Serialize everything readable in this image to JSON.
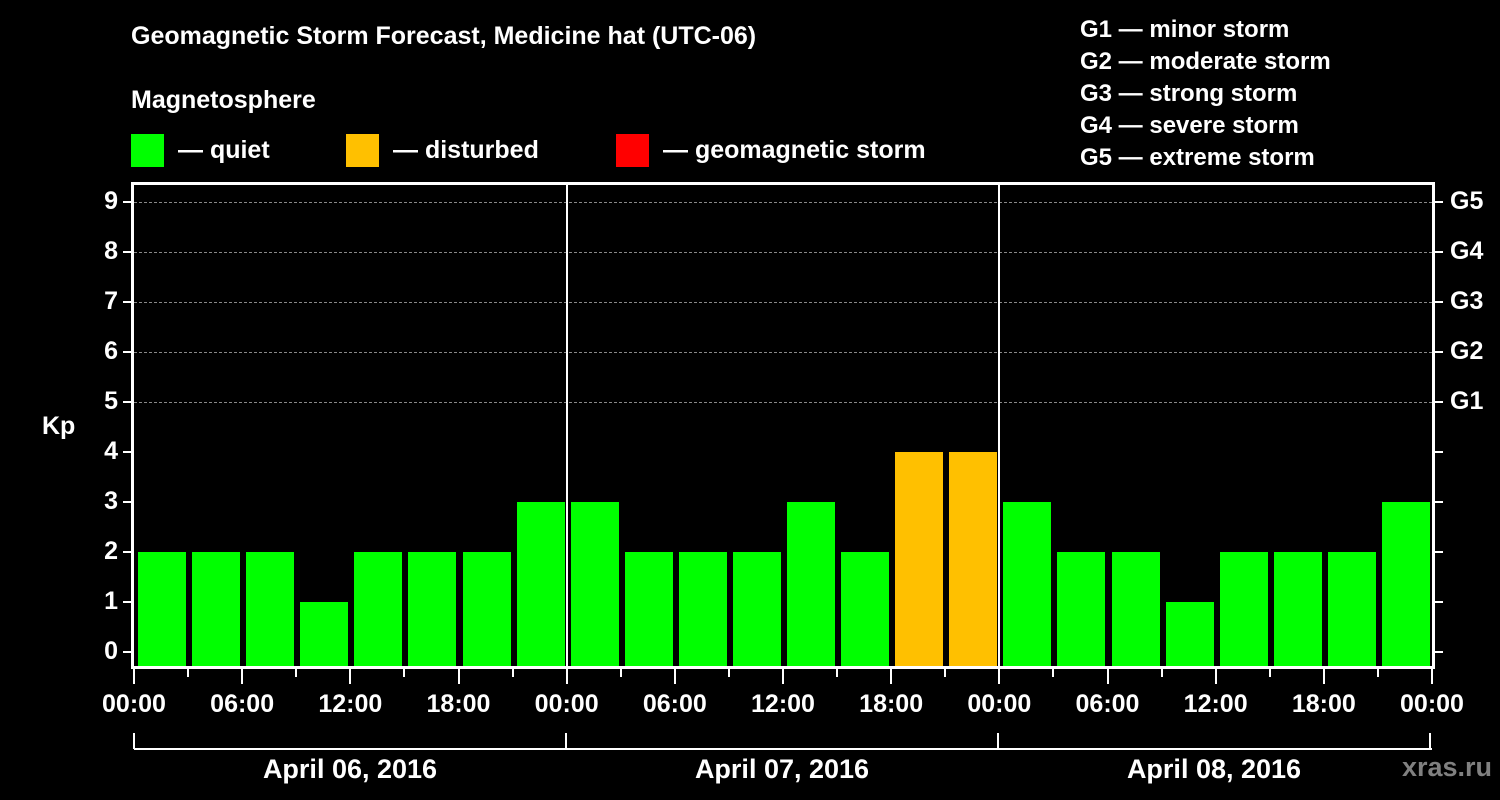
{
  "header": {
    "title": "Geomagnetic Storm Forecast, Medicine hat (UTC-06)",
    "subtitle": "Magnetosphere"
  },
  "legend": [
    {
      "label": "— quiet",
      "color": "#00ff00"
    },
    {
      "label": "— disturbed",
      "color": "#ffc000"
    },
    {
      "label": "— geomagnetic storm",
      "color": "#ff0000"
    }
  ],
  "g_scale": [
    "G1 — minor storm",
    "G2 — moderate storm",
    "G3 — strong storm",
    "G4 — severe storm",
    "G5 — extreme storm"
  ],
  "axes": {
    "ylabel": "Kp",
    "yticks": [
      "0",
      "1",
      "2",
      "3",
      "4",
      "5",
      "6",
      "7",
      "8",
      "9"
    ],
    "right_ticks": [
      {
        "kp": 5,
        "label": "G1"
      },
      {
        "kp": 6,
        "label": "G2"
      },
      {
        "kp": 7,
        "label": "G3"
      },
      {
        "kp": 8,
        "label": "G4"
      },
      {
        "kp": 9,
        "label": "G5"
      }
    ],
    "xticks": [
      "00:00",
      "06:00",
      "12:00",
      "18:00",
      "00:00",
      "06:00",
      "12:00",
      "18:00",
      "00:00",
      "06:00",
      "12:00",
      "18:00",
      "00:00"
    ],
    "dates": [
      "April 06, 2016",
      "April 07, 2016",
      "April 08, 2016"
    ]
  },
  "watermark": "xras.ru",
  "chart_data": {
    "type": "bar",
    "title": "Geomagnetic Storm Forecast, Medicine hat (UTC-06)",
    "subtitle": "Magnetosphere",
    "xlabel": "",
    "ylabel": "Kp",
    "ylim": [
      0,
      9
    ],
    "grid": "dashed horizontal at Kp 5-9",
    "legend_position": "top",
    "categories": [
      "Apr 06 00:00",
      "Apr 06 03:00",
      "Apr 06 06:00",
      "Apr 06 09:00",
      "Apr 06 12:00",
      "Apr 06 15:00",
      "Apr 06 18:00",
      "Apr 06 21:00",
      "Apr 07 00:00",
      "Apr 07 03:00",
      "Apr 07 06:00",
      "Apr 07 09:00",
      "Apr 07 12:00",
      "Apr 07 15:00",
      "Apr 07 18:00",
      "Apr 07 21:00",
      "Apr 08 00:00",
      "Apr 08 03:00",
      "Apr 08 06:00",
      "Apr 08 09:00",
      "Apr 08 12:00",
      "Apr 08 15:00",
      "Apr 08 18:00",
      "Apr 08 21:00"
    ],
    "values": [
      2,
      2,
      2,
      1,
      2,
      2,
      2,
      3,
      3,
      2,
      2,
      2,
      3,
      2,
      4,
      4,
      3,
      2,
      2,
      1,
      2,
      2,
      2,
      3
    ],
    "status": [
      "quiet",
      "quiet",
      "quiet",
      "quiet",
      "quiet",
      "quiet",
      "quiet",
      "quiet",
      "quiet",
      "quiet",
      "quiet",
      "quiet",
      "quiet",
      "quiet",
      "disturbed",
      "disturbed",
      "quiet",
      "quiet",
      "quiet",
      "quiet",
      "quiet",
      "quiet",
      "quiet",
      "quiet"
    ],
    "status_colors": {
      "quiet": "#00ff00",
      "disturbed": "#ffc000",
      "storm": "#ff0000"
    },
    "right_axis": {
      "5": "G1",
      "6": "G2",
      "7": "G3",
      "8": "G4",
      "9": "G5"
    },
    "x_tick_labels": [
      "00:00",
      "06:00",
      "12:00",
      "18:00",
      "00:00",
      "06:00",
      "12:00",
      "18:00",
      "00:00",
      "06:00",
      "12:00",
      "18:00",
      "00:00"
    ],
    "date_groups": [
      "April 06, 2016",
      "April 07, 2016",
      "April 08, 2016"
    ]
  }
}
